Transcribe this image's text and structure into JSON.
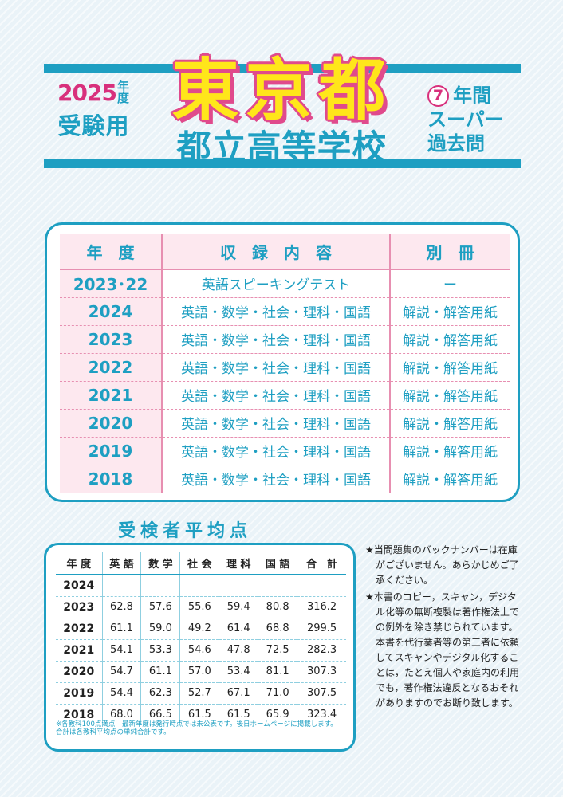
{
  "header": {
    "year_number": "2025",
    "year_suffix": "年度",
    "juken": "受験用",
    "title_main": "東京都",
    "title_sub": "都立高等学校",
    "years_number": "7",
    "years_label": "年間",
    "super_label": "スーパー",
    "kako_label": "過去問"
  },
  "contents": {
    "headers": [
      "年　度",
      "収　録　内　容",
      "別　冊"
    ],
    "rows": [
      {
        "year": "2023･22",
        "subjects": "英語スピーキングテスト",
        "extra": "ー"
      },
      {
        "year": "2024",
        "subjects": "英語・数学・社会・理科・国語",
        "extra": "解説・解答用紙"
      },
      {
        "year": "2023",
        "subjects": "英語・数学・社会・理科・国語",
        "extra": "解説・解答用紙"
      },
      {
        "year": "2022",
        "subjects": "英語・数学・社会・理科・国語",
        "extra": "解説・解答用紙"
      },
      {
        "year": "2021",
        "subjects": "英語・数学・社会・理科・国語",
        "extra": "解説・解答用紙"
      },
      {
        "year": "2020",
        "subjects": "英語・数学・社会・理科・国語",
        "extra": "解説・解答用紙"
      },
      {
        "year": "2019",
        "subjects": "英語・数学・社会・理科・国語",
        "extra": "解説・解答用紙"
      },
      {
        "year": "2018",
        "subjects": "英語・数学・社会・理科・国語",
        "extra": "解説・解答用紙"
      }
    ]
  },
  "average": {
    "title": "受検者平均点",
    "headers": [
      "年 度",
      "英 語",
      "数 学",
      "社 会",
      "理 科",
      "国 語",
      "合　計"
    ],
    "rows": [
      [
        "2024",
        "",
        "",
        "",
        "",
        "",
        ""
      ],
      [
        "2023",
        "62.8",
        "57.6",
        "55.6",
        "59.4",
        "80.8",
        "316.2"
      ],
      [
        "2022",
        "61.1",
        "59.0",
        "49.2",
        "61.4",
        "68.8",
        "299.5"
      ],
      [
        "2021",
        "54.1",
        "53.3",
        "54.6",
        "47.8",
        "72.5",
        "282.3"
      ],
      [
        "2020",
        "54.7",
        "61.1",
        "57.0",
        "53.4",
        "81.1",
        "307.3"
      ],
      [
        "2019",
        "54.4",
        "62.3",
        "52.7",
        "67.1",
        "71.0",
        "307.5"
      ],
      [
        "2018",
        "68.0",
        "66.5",
        "61.5",
        "61.5",
        "65.9",
        "323.4"
      ]
    ],
    "note1": "※各教科100点満点　最新年度は発行時点では未公表です。後日ホームページに掲載します。",
    "note2": "合計は各教科平均点の単純合計です。"
  },
  "notes": {
    "note1": "★当問題集のバックナンバーは在庫がございません。あらかじめご了承ください。",
    "note2": "★本書のコピー，スキャン，デジタル化等の無断複製は著作権法上での例外を除き禁じられています。本書を代行業者等の第三者に依頼してスキャンやデジタル化することは，たとえ個人や家庭内の利用でも，著作権法違反となるおそれがありますのでお断り致します。"
  },
  "colors": {
    "accent": "#1e9fc2",
    "pink": "#d8307c",
    "yellow": "#ffe61a",
    "row_bg": "#fde8ef"
  }
}
